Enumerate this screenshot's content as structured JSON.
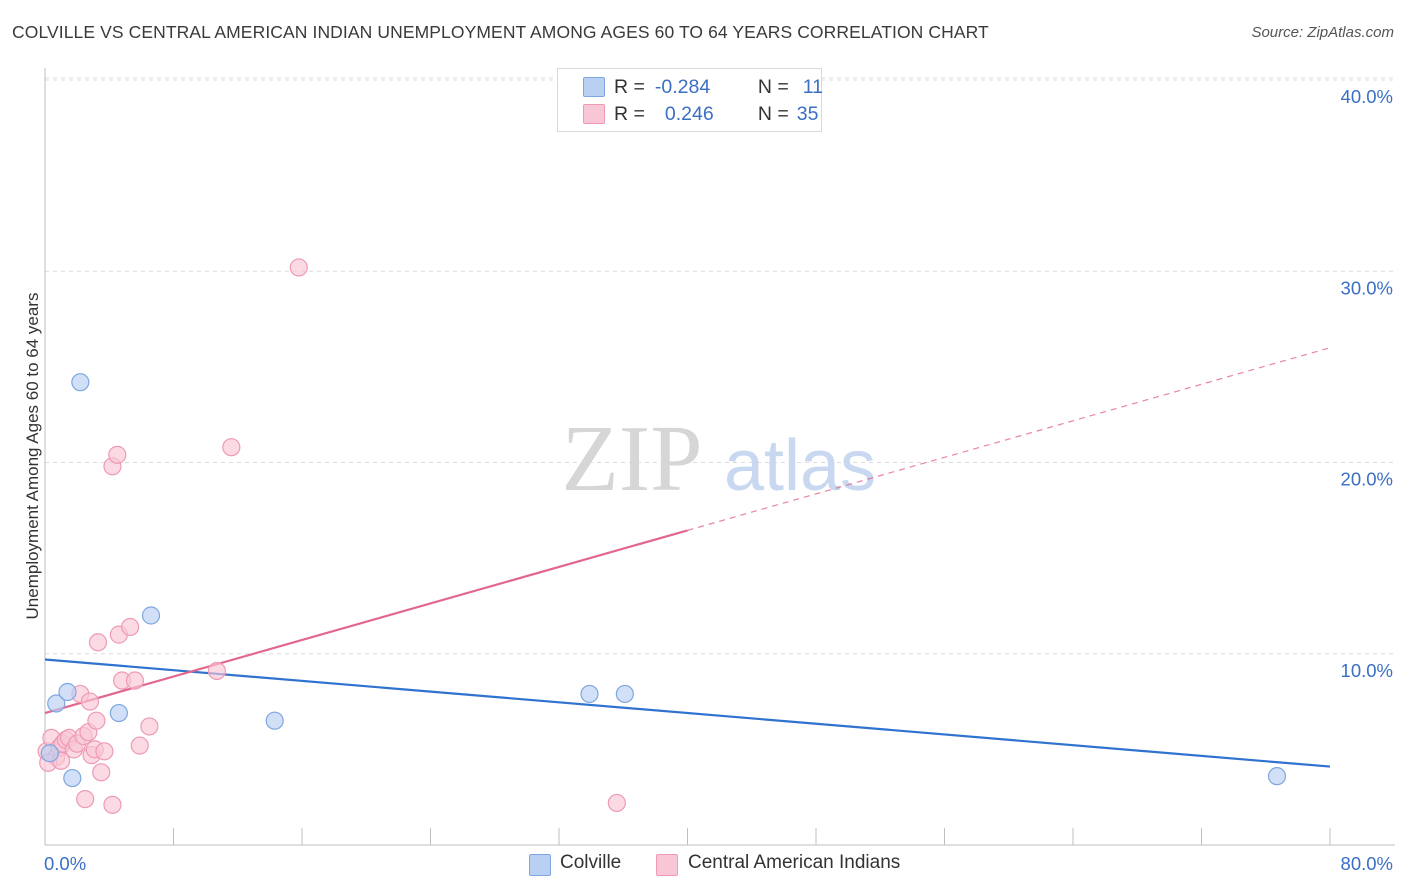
{
  "header": {
    "title": "COLVILLE VS CENTRAL AMERICAN INDIAN UNEMPLOYMENT AMONG AGES 60 TO 64 YEARS CORRELATION CHART",
    "source": "Source: ZipAtlas.com"
  },
  "watermark": {
    "zip": "ZIP",
    "atlas": "atlas"
  },
  "legend": {
    "rows": [
      {
        "r_label": "R =",
        "r_value": "-0.284",
        "n_label": "N =",
        "n_value": "11"
      },
      {
        "r_label": "R =",
        "r_value": "0.246",
        "n_label": "N =",
        "n_value": "35"
      }
    ]
  },
  "bottom_legend": {
    "colville": "Colville",
    "central": "Central American Indians"
  },
  "colors": {
    "blue_fill": "#b9d0f2",
    "blue_stroke": "#7ea6e0",
    "blue_line": "#2f72d0",
    "pink_fill": "#f9c6d6",
    "pink_stroke": "#ee9ab4",
    "pink_line": "#e2678f",
    "axis_text": "#3a6fc4",
    "grid": "#dcdcdc"
  },
  "chart_data": {
    "type": "scatter",
    "title": "COLVILLE VS CENTRAL AMERICAN INDIAN UNEMPLOYMENT AMONG AGES 60 TO 64 YEARS CORRELATION CHART",
    "xlabel": "",
    "ylabel": "Unemployment Among Ages 60 to 64 years",
    "xlim": [
      0,
      80
    ],
    "ylim": [
      0,
      40
    ],
    "x_tick_labels": [
      "0.0%",
      "80.0%"
    ],
    "y_ticks": [
      10,
      20,
      30,
      40
    ],
    "y_tick_labels": [
      "10.0%",
      "20.0%",
      "30.0%",
      "40.0%"
    ],
    "grid": true,
    "legend_position": "top-center",
    "series": [
      {
        "name": "Colville",
        "points": [
          [
            0.3,
            4.8
          ],
          [
            0.7,
            7.4
          ],
          [
            1.4,
            8.0
          ],
          [
            1.7,
            3.5
          ],
          [
            2.2,
            24.2
          ],
          [
            4.6,
            6.9
          ],
          [
            6.6,
            12.0
          ],
          [
            14.3,
            6.5
          ],
          [
            33.9,
            7.9
          ],
          [
            36.1,
            7.9
          ],
          [
            76.7,
            3.6
          ]
        ],
        "trend": {
          "x": [
            0,
            80
          ],
          "y": [
            9.7,
            4.1
          ],
          "dashed_from": null
        }
      },
      {
        "name": "Central American Indians",
        "points": [
          [
            0.1,
            4.9
          ],
          [
            0.4,
            5.6
          ],
          [
            0.7,
            4.6
          ],
          [
            0.9,
            5.1
          ],
          [
            1.1,
            5.3
          ],
          [
            1.3,
            5.5
          ],
          [
            1.5,
            5.6
          ],
          [
            1.8,
            5.0
          ],
          [
            2.0,
            5.3
          ],
          [
            2.2,
            7.9
          ],
          [
            2.4,
            5.7
          ],
          [
            2.5,
            2.4
          ],
          [
            2.7,
            5.9
          ],
          [
            2.9,
            4.7
          ],
          [
            2.8,
            7.5
          ],
          [
            3.1,
            5.0
          ],
          [
            3.2,
            6.5
          ],
          [
            3.3,
            10.6
          ],
          [
            3.5,
            3.8
          ],
          [
            3.7,
            4.9
          ],
          [
            4.2,
            2.1
          ],
          [
            4.2,
            19.8
          ],
          [
            4.5,
            20.4
          ],
          [
            4.6,
            11.0
          ],
          [
            4.8,
            8.6
          ],
          [
            5.3,
            11.4
          ],
          [
            5.6,
            8.6
          ],
          [
            5.9,
            5.2
          ],
          [
            6.5,
            6.2
          ],
          [
            10.7,
            9.1
          ],
          [
            11.6,
            20.8
          ],
          [
            15.8,
            30.2
          ],
          [
            35.6,
            2.2
          ],
          [
            0.2,
            4.3
          ],
          [
            1.0,
            4.4
          ]
        ],
        "trend": {
          "x": [
            0,
            80
          ],
          "y": [
            6.9,
            26.0
          ],
          "dashed_from": 40
        }
      }
    ]
  }
}
